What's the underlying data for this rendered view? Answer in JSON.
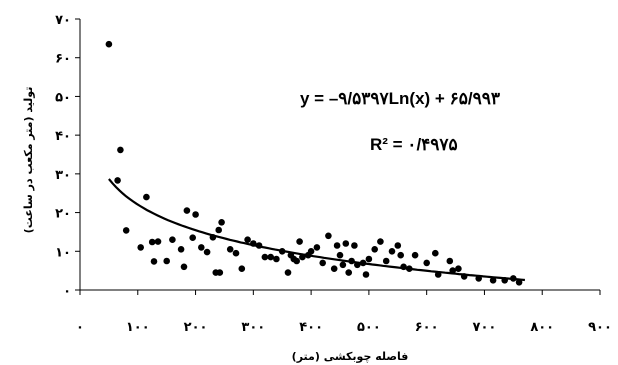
{
  "chart_data": {
    "type": "scatter",
    "title": "",
    "xlabel": "فاصله چوبکشی (متر)",
    "ylabel": "تولید (متر مکعب در ساعت)",
    "xlim": [
      0,
      900
    ],
    "ylim": [
      0,
      70
    ],
    "x_ticks": [
      0,
      100,
      200,
      300,
      400,
      500,
      600,
      700,
      800,
      900
    ],
    "y_ticks": [
      0,
      10,
      20,
      30,
      40,
      50,
      60,
      70
    ],
    "x_tick_labels": [
      "۰",
      "۱۰۰",
      "۲۰۰",
      "۳۰۰",
      "۴۰۰",
      "۵۰۰",
      "۶۰۰",
      "۷۰۰",
      "۸۰۰",
      "۹۰۰"
    ],
    "y_tick_labels": [
      "۰",
      "۱۰",
      "۲۰",
      "۳۰",
      "۴۰",
      "۵۰",
      "۶۰",
      "۷۰"
    ],
    "grid": false,
    "legend": "none",
    "marker_color": "#000000",
    "points": [
      [
        50,
        63.5
      ],
      [
        65,
        28.3
      ],
      [
        70,
        36.2
      ],
      [
        80,
        15.4
      ],
      [
        105,
        11.0
      ],
      [
        115,
        24.0
      ],
      [
        125,
        12.4
      ],
      [
        128,
        7.4
      ],
      [
        135,
        12.5
      ],
      [
        150,
        7.5
      ],
      [
        160,
        13.0
      ],
      [
        175,
        10.5
      ],
      [
        180,
        6.0
      ],
      [
        185,
        20.5
      ],
      [
        195,
        13.5
      ],
      [
        200,
        19.5
      ],
      [
        210,
        11.0
      ],
      [
        220,
        9.8
      ],
      [
        230,
        13.6
      ],
      [
        235,
        4.5
      ],
      [
        240,
        15.5
      ],
      [
        242,
        4.5
      ],
      [
        245,
        17.5
      ],
      [
        260,
        10.5
      ],
      [
        270,
        9.5
      ],
      [
        280,
        5.5
      ],
      [
        290,
        13.0
      ],
      [
        300,
        12.0
      ],
      [
        310,
        11.5
      ],
      [
        320,
        8.5
      ],
      [
        330,
        8.5
      ],
      [
        340,
        8.0
      ],
      [
        350,
        10.0
      ],
      [
        360,
        4.5
      ],
      [
        365,
        9.0
      ],
      [
        370,
        8.0
      ],
      [
        375,
        7.5
      ],
      [
        380,
        12.5
      ],
      [
        385,
        8.5
      ],
      [
        395,
        9.0
      ],
      [
        400,
        10.0
      ],
      [
        410,
        11.0
      ],
      [
        420,
        7.0
      ],
      [
        430,
        14.0
      ],
      [
        440,
        5.5
      ],
      [
        445,
        11.5
      ],
      [
        450,
        9.0
      ],
      [
        455,
        6.5
      ],
      [
        460,
        12.0
      ],
      [
        465,
        4.5
      ],
      [
        470,
        7.5
      ],
      [
        475,
        11.5
      ],
      [
        480,
        6.5
      ],
      [
        490,
        7.0
      ],
      [
        495,
        4.0
      ],
      [
        500,
        8.0
      ],
      [
        510,
        10.5
      ],
      [
        520,
        12.5
      ],
      [
        530,
        7.5
      ],
      [
        540,
        10.0
      ],
      [
        550,
        11.5
      ],
      [
        555,
        9.0
      ],
      [
        560,
        6.0
      ],
      [
        570,
        5.5
      ],
      [
        580,
        9.0
      ],
      [
        600,
        7.0
      ],
      [
        615,
        9.5
      ],
      [
        620,
        4.0
      ],
      [
        640,
        7.5
      ],
      [
        645,
        5.0
      ],
      [
        655,
        5.5
      ],
      [
        665,
        3.5
      ],
      [
        690,
        3.0
      ],
      [
        715,
        2.5
      ],
      [
        735,
        2.5
      ],
      [
        750,
        3.0
      ],
      [
        760,
        2.0
      ]
    ],
    "trendline": {
      "type": "logarithmic",
      "a": -9.5397,
      "b": 65.993,
      "x_range": [
        50,
        770
      ],
      "equation_label": "y = –۹/۵۳۹۷Ln(x) + ۶۵/۹۹۳",
      "r2_label": "R² = ۰/۴۹۷۵"
    }
  }
}
